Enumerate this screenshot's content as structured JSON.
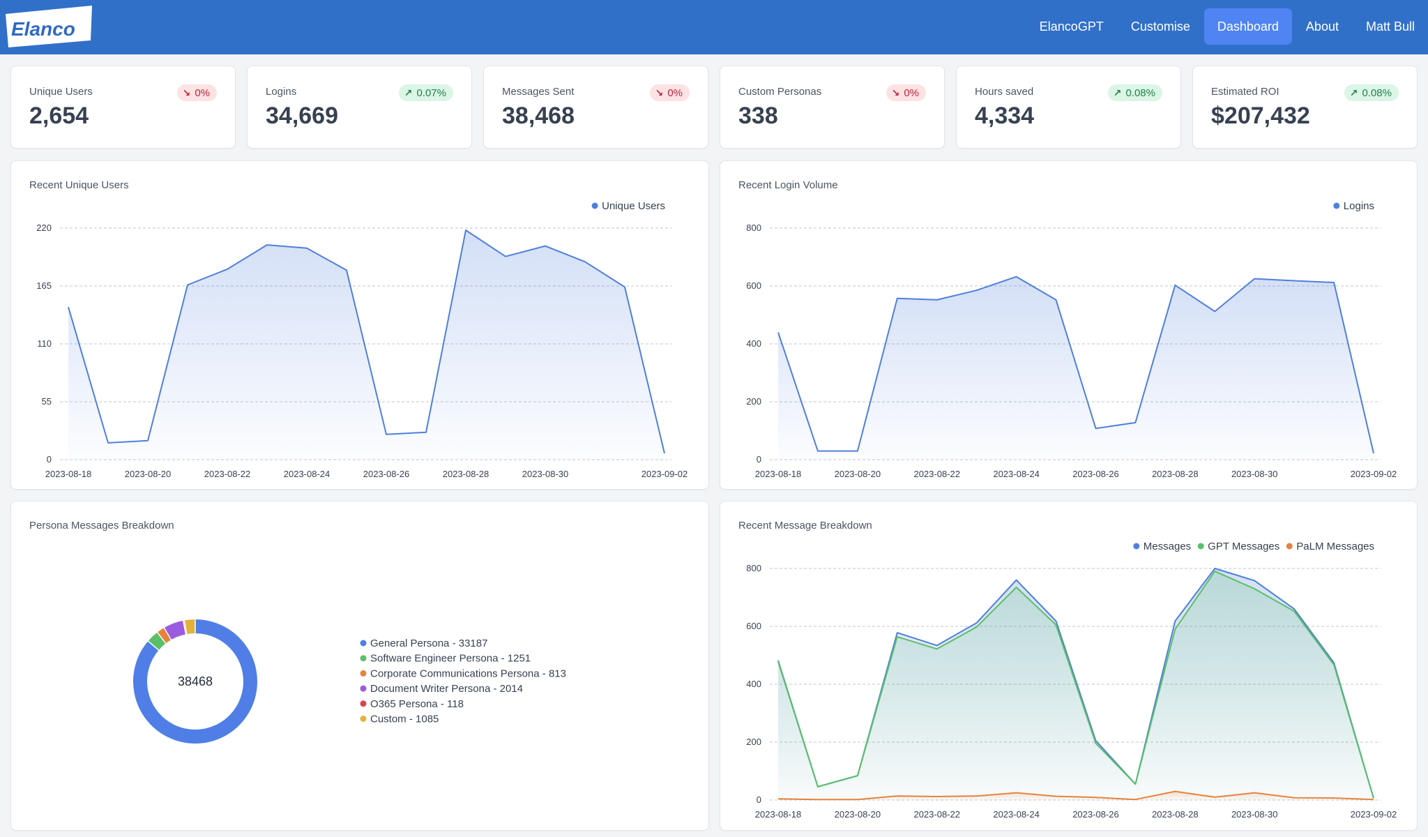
{
  "brand": {
    "logo_text": "Elanco",
    "accent": "#3170c9",
    "active_nav_bg": "#4f84f2"
  },
  "nav": {
    "items": [
      {
        "label": "ElancoGPT",
        "active": false
      },
      {
        "label": "Customise",
        "active": false
      },
      {
        "label": "Dashboard",
        "active": true
      },
      {
        "label": "About",
        "active": false
      },
      {
        "label": "Matt Bull",
        "active": false
      }
    ]
  },
  "stats": [
    {
      "label": "Unique Users",
      "value": "2,654",
      "change": "0%",
      "trend": "down"
    },
    {
      "label": "Logins",
      "value": "34,669",
      "change": "0.07%",
      "trend": "up"
    },
    {
      "label": "Messages Sent",
      "value": "38,468",
      "change": "0%",
      "trend": "down"
    },
    {
      "label": "Custom Personas",
      "value": "338",
      "change": "0%",
      "trend": "down"
    },
    {
      "label": "Hours saved",
      "value": "4,334",
      "change": "0.08%",
      "trend": "up"
    },
    {
      "label": "Estimated ROI",
      "value": "$207,432",
      "change": "0.08%",
      "trend": "up"
    }
  ],
  "chart_data": [
    {
      "id": "unique-users",
      "type": "area",
      "title": "Recent Unique Users",
      "x": [
        "2023-08-18",
        "2023-08-19",
        "2023-08-20",
        "2023-08-21",
        "2023-08-22",
        "2023-08-23",
        "2023-08-24",
        "2023-08-25",
        "2023-08-26",
        "2023-08-27",
        "2023-08-28",
        "2023-08-29",
        "2023-08-30",
        "2023-08-31",
        "2023-09-01",
        "2023-09-02"
      ],
      "x_ticks": [
        "2023-08-18",
        "2023-08-20",
        "2023-08-22",
        "2023-08-24",
        "2023-08-26",
        "2023-08-28",
        "2023-08-30",
        "2023-09-02"
      ],
      "y_ticks": [
        0,
        55,
        110,
        165,
        220
      ],
      "ylim": [
        0,
        220
      ],
      "series": [
        {
          "name": "Unique Users",
          "color": "#4f7fdc",
          "values": [
            145,
            16,
            18,
            166,
            181,
            204,
            201,
            180,
            24,
            26,
            218,
            193,
            203,
            188,
            164,
            6
          ]
        }
      ],
      "legend": "top-right",
      "grid": true
    },
    {
      "id": "login-volume",
      "type": "area",
      "title": "Recent Login Volume",
      "x": [
        "2023-08-18",
        "2023-08-19",
        "2023-08-20",
        "2023-08-21",
        "2023-08-22",
        "2023-08-23",
        "2023-08-24",
        "2023-08-25",
        "2023-08-26",
        "2023-08-27",
        "2023-08-28",
        "2023-08-29",
        "2023-08-30",
        "2023-08-31",
        "2023-09-01",
        "2023-09-02"
      ],
      "x_ticks": [
        "2023-08-18",
        "2023-08-20",
        "2023-08-22",
        "2023-08-24",
        "2023-08-26",
        "2023-08-28",
        "2023-08-30",
        "2023-09-02"
      ],
      "y_ticks": [
        0,
        200,
        400,
        600,
        800
      ],
      "ylim": [
        0,
        800
      ],
      "series": [
        {
          "name": "Logins",
          "color": "#4f7fdc",
          "values": [
            440,
            30,
            30,
            557,
            552,
            585,
            632,
            552,
            108,
            128,
            603,
            512,
            625,
            618,
            612,
            22
          ]
        }
      ],
      "legend": "top-right",
      "grid": true
    },
    {
      "id": "persona-breakdown",
      "type": "pie",
      "title": "Persona Messages Breakdown",
      "center_label": "38468",
      "slices": [
        {
          "label": "General Persona - 33187",
          "value": 33187,
          "color": "#4f7fe6"
        },
        {
          "label": "Software Engineer Persona - 1251",
          "value": 1251,
          "color": "#5bbf6a"
        },
        {
          "label": "Corporate Communications Persona - 813",
          "value": 813,
          "color": "#e8823c"
        },
        {
          "label": "Document Writer Persona - 2014",
          "value": 2014,
          "color": "#9b5be0"
        },
        {
          "label": "O365 Persona - 118",
          "value": 118,
          "color": "#d8454e"
        },
        {
          "label": "Custom - 1085",
          "value": 1085,
          "color": "#e3b23c"
        }
      ],
      "legend": "right"
    },
    {
      "id": "message-breakdown",
      "type": "area",
      "title": "Recent Message Breakdown",
      "x": [
        "2023-08-18",
        "2023-08-19",
        "2023-08-20",
        "2023-08-21",
        "2023-08-22",
        "2023-08-23",
        "2023-08-24",
        "2023-08-25",
        "2023-08-26",
        "2023-08-27",
        "2023-08-28",
        "2023-08-29",
        "2023-08-30",
        "2023-08-31",
        "2023-09-01",
        "2023-09-02"
      ],
      "x_ticks": [
        "2023-08-18",
        "2023-08-20",
        "2023-08-22",
        "2023-08-24",
        "2023-08-26",
        "2023-08-28",
        "2023-08-30",
        "2023-09-02"
      ],
      "y_ticks": [
        0,
        200,
        400,
        600,
        800
      ],
      "ylim": [
        0,
        800
      ],
      "series": [
        {
          "name": "Messages",
          "color": "#4f7fdc",
          "values": [
            482,
            46,
            84,
            578,
            534,
            612,
            760,
            618,
            205,
            55,
            618,
            800,
            758,
            660,
            474,
            6
          ]
        },
        {
          "name": "GPT Messages",
          "color": "#5bbf6a",
          "values": [
            478,
            46,
            84,
            564,
            522,
            598,
            735,
            605,
            196,
            55,
            590,
            790,
            730,
            652,
            467,
            6
          ]
        },
        {
          "name": "PaLM Messages",
          "color": "#e8823c",
          "values": [
            4,
            2,
            2,
            14,
            12,
            14,
            25,
            13,
            9,
            2,
            30,
            10,
            25,
            8,
            7,
            2
          ]
        }
      ],
      "legend": "top-right",
      "grid": true
    }
  ]
}
